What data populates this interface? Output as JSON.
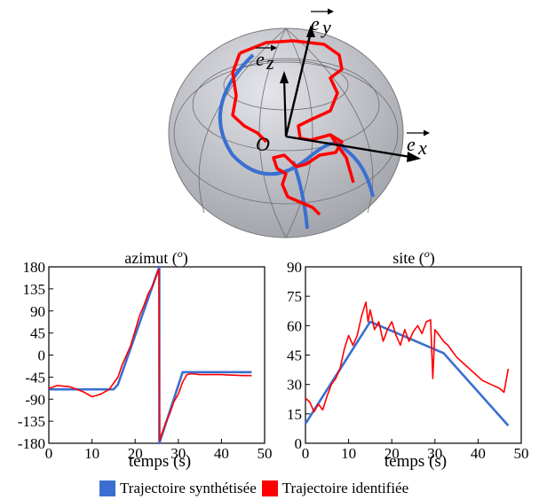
{
  "sphere": {
    "vectors": {
      "ex": "e",
      "ey": "e",
      "ez": "e",
      "ex_sub": "x",
      "ey_sub": "y",
      "ez_sub": "z"
    },
    "origin_label": "O",
    "colors": {
      "synth": "#3a6fd1",
      "ident": "#ff0000",
      "sphere": "#c9cacf"
    }
  },
  "chart_data": [
    {
      "type": "line",
      "title": "azimut (o)",
      "title_text": "azimut (",
      "title_sup": "o",
      "title_close": ")",
      "xlabel": "temps (s)",
      "ylabel": "",
      "xlim": [
        0,
        50
      ],
      "ylim": [
        -180,
        180
      ],
      "xticks": [
        "0",
        "10",
        "20",
        "30",
        "40",
        "50"
      ],
      "yticks": [
        "180",
        "135",
        "90",
        "45",
        "0",
        "-45",
        "-90",
        "-135",
        "-180"
      ],
      "grid": false,
      "series": [
        {
          "name": "Trajectoire synthétisée",
          "color": "#3a6fd1",
          "x": [
            0,
            15,
            16,
            25.6,
            25.6,
            25.6,
            31,
            47
          ],
          "y": [
            -70,
            -70,
            -60,
            180,
            -180,
            -180,
            -35,
            -35
          ]
        },
        {
          "name": "Trajectoire identifiée",
          "color": "#ff0000",
          "x": [
            0,
            2,
            5,
            8,
            10,
            12,
            14,
            16,
            17,
            18,
            19,
            20,
            21,
            22,
            23,
            24,
            25,
            25.5,
            25.7,
            26,
            27,
            28,
            29,
            30,
            31,
            32,
            33,
            35,
            40,
            45,
            47
          ],
          "y": [
            -68,
            -62,
            -65,
            -75,
            -85,
            -80,
            -70,
            -45,
            -20,
            0,
            20,
            50,
            80,
            100,
            125,
            140,
            165,
            175,
            -175,
            -165,
            -140,
            -120,
            -95,
            -80,
            -55,
            -40,
            -38,
            -40,
            -40,
            -42,
            -42
          ]
        }
      ]
    },
    {
      "type": "line",
      "title": "site (o)",
      "title_text": "site (",
      "title_sup": "o",
      "title_close": ")",
      "xlabel": "temps (s)",
      "ylabel": "",
      "xlim": [
        0,
        50
      ],
      "ylim": [
        0,
        90
      ],
      "xticks": [
        "0",
        "10",
        "20",
        "30",
        "40",
        "50"
      ],
      "yticks": [
        "90",
        "75",
        "60",
        "45",
        "30",
        "15",
        "0"
      ],
      "grid": false,
      "series": [
        {
          "name": "Trajectoire synthétisée",
          "color": "#3a6fd1",
          "x": [
            0,
            15,
            32,
            47
          ],
          "y": [
            10,
            62,
            46,
            9
          ]
        },
        {
          "name": "Trajectoire identifiée",
          "color": "#ff0000",
          "x": [
            0,
            1,
            2,
            3,
            4,
            5,
            6,
            7,
            8,
            9,
            10,
            11,
            12,
            13,
            14,
            14.5,
            15,
            16,
            17,
            18,
            19,
            20,
            21,
            22,
            23,
            24,
            25,
            26,
            27,
            28,
            29,
            29.5,
            30,
            31,
            32,
            33,
            35,
            37,
            39,
            41,
            43,
            45,
            46,
            46.5,
            47
          ],
          "y": [
            23,
            21,
            16,
            20,
            17,
            24,
            30,
            33,
            38,
            48,
            55,
            50,
            55,
            65,
            72,
            62,
            68,
            58,
            62,
            52,
            58,
            62,
            55,
            50,
            58,
            52,
            57,
            60,
            56,
            62,
            63,
            33,
            58,
            55,
            52,
            50,
            44,
            40,
            36,
            32,
            30,
            28,
            26,
            32,
            38
          ]
        }
      ]
    }
  ],
  "legend": {
    "items": [
      {
        "label": "Trajectoire synthétisée",
        "color": "#3a6fd1"
      },
      {
        "label": "Trajectoire identifiée",
        "color": "#ff0000"
      }
    ]
  }
}
